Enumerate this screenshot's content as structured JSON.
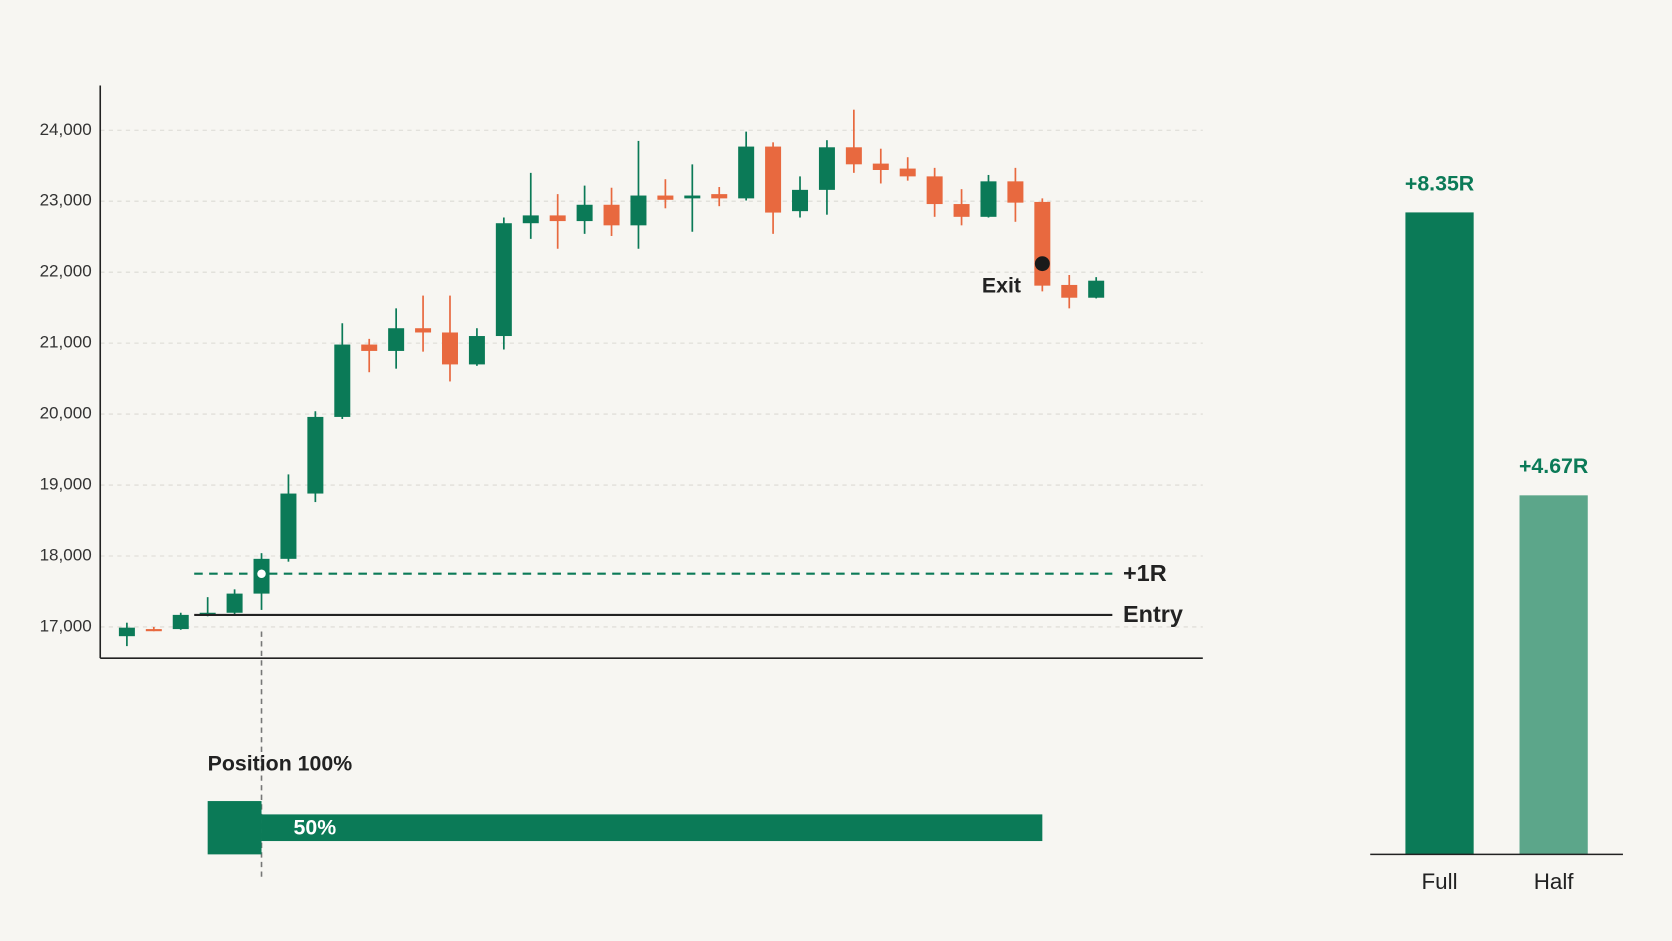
{
  "chart_data": [
    {
      "type": "candlestick",
      "categories": [
        null,
        null,
        null,
        null,
        null,
        null,
        null,
        null,
        null,
        null,
        null,
        null,
        null,
        null,
        null,
        null,
        null,
        null,
        null,
        null,
        null,
        null,
        null,
        null,
        null,
        null,
        null,
        null,
        null,
        null,
        null,
        null,
        null,
        null,
        null,
        null,
        null
      ],
      "open": [
        16870,
        16970,
        16970,
        17170,
        17200,
        17470,
        17960,
        18880,
        19960,
        20980,
        20890,
        21210,
        21150,
        20700,
        21100,
        22690,
        22800,
        22720,
        22950,
        22660,
        23080,
        23040,
        23100,
        23040,
        23770,
        22860,
        23160,
        23760,
        23530,
        23460,
        23350,
        22960,
        22780,
        23280,
        22990,
        21820,
        21640
      ],
      "high": [
        17060,
        17000,
        17200,
        17420,
        17530,
        18040,
        19150,
        20040,
        21280,
        21060,
        21490,
        21670,
        21670,
        21210,
        22770,
        23400,
        23100,
        23220,
        23190,
        23850,
        23310,
        23520,
        23200,
        23980,
        23830,
        23350,
        23860,
        24290,
        23740,
        23620,
        23470,
        23170,
        23370,
        23470,
        23040,
        21960,
        21930
      ],
      "low": [
        16730,
        16940,
        16960,
        17150,
        17170,
        17240,
        17920,
        18760,
        19930,
        20590,
        20640,
        20880,
        20460,
        20680,
        20910,
        22470,
        22330,
        22540,
        22510,
        22330,
        22900,
        22570,
        22930,
        23010,
        22540,
        22770,
        22810,
        23400,
        23250,
        23290,
        22780,
        22660,
        22770,
        22710,
        21730,
        21490,
        21630
      ],
      "close": [
        16990,
        16960,
        17170,
        17200,
        17470,
        17960,
        18880,
        19960,
        20980,
        20890,
        21210,
        21150,
        20700,
        21100,
        22690,
        22800,
        22720,
        22950,
        22660,
        23080,
        23020,
        23080,
        23040,
        23770,
        22840,
        23160,
        23760,
        23520,
        23440,
        23350,
        22960,
        22780,
        23280,
        22980,
        21810,
        21640,
        21880
      ],
      "up_color": "#0b7a57",
      "down_color": "#e8693f",
      "ylim": [
        16560,
        24630
      ],
      "yticks": [
        {
          "value": 17000,
          "label": "17,000"
        },
        {
          "value": 18000,
          "label": "18,000"
        },
        {
          "value": 19000,
          "label": "19,000"
        },
        {
          "value": 20000,
          "label": "20,000"
        },
        {
          "value": 21000,
          "label": "21,000"
        },
        {
          "value": 22000,
          "label": "22,000"
        },
        {
          "value": 23000,
          "label": "23,000"
        },
        {
          "value": 24000,
          "label": "24,000"
        }
      ],
      "grid": true,
      "lines": [
        {
          "label": "+1R",
          "value": 17750,
          "style": "dashed",
          "color": "#0b7a57"
        },
        {
          "label": "Entry",
          "value": 17170,
          "style": "solid",
          "color": "#222222"
        }
      ],
      "markers": [
        {
          "index": 5,
          "value": 17750,
          "color": "#ffffff"
        },
        {
          "index": 34,
          "value": 22120,
          "color": "#1a1a1a",
          "label": "Exit"
        }
      ],
      "position": {
        "title": "Position 100%",
        "color": "#0b7a57",
        "segments": [
          {
            "start": 3,
            "end": 5,
            "value": 100
          },
          {
            "start": 5,
            "end": 34,
            "value": 50,
            "label": "50%"
          }
        ]
      }
    },
    {
      "type": "bar",
      "categories": [
        "Full",
        "Half"
      ],
      "values": [
        8.35,
        4.67
      ],
      "value_labels": [
        "+8.35R",
        "+4.67R"
      ],
      "colors": [
        "#0b7a57",
        "#5ca68a"
      ],
      "ylim": [
        0,
        10
      ]
    }
  ]
}
